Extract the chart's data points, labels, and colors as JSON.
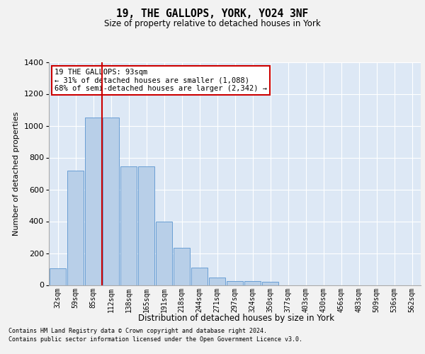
{
  "title1": "19, THE GALLOPS, YORK, YO24 3NF",
  "title2": "Size of property relative to detached houses in York",
  "xlabel": "Distribution of detached houses by size in York",
  "ylabel": "Number of detached properties",
  "categories": [
    "32sqm",
    "59sqm",
    "85sqm",
    "112sqm",
    "138sqm",
    "165sqm",
    "191sqm",
    "218sqm",
    "244sqm",
    "271sqm",
    "297sqm",
    "324sqm",
    "350sqm",
    "377sqm",
    "403sqm",
    "430sqm",
    "456sqm",
    "483sqm",
    "509sqm",
    "536sqm",
    "562sqm"
  ],
  "values": [
    105,
    720,
    1050,
    1050,
    745,
    745,
    400,
    235,
    110,
    45,
    25,
    25,
    20,
    0,
    0,
    0,
    0,
    0,
    0,
    0,
    0
  ],
  "bar_color": "#b8cfe8",
  "bar_edge_color": "#6a9fd4",
  "vline_color": "#cc0000",
  "vline_pos": 2.5,
  "annotation_text": "19 THE GALLOPS: 93sqm\n← 31% of detached houses are smaller (1,088)\n68% of semi-detached houses are larger (2,342) →",
  "annotation_box_color": "#ffffff",
  "annotation_box_edge": "#cc0000",
  "ylim": [
    0,
    1400
  ],
  "yticks": [
    0,
    200,
    400,
    600,
    800,
    1000,
    1200,
    1400
  ],
  "background_color": "#dde8f5",
  "grid_color": "#ffffff",
  "fig_bg": "#f2f2f2",
  "footer1": "Contains HM Land Registry data © Crown copyright and database right 2024.",
  "footer2": "Contains public sector information licensed under the Open Government Licence v3.0."
}
